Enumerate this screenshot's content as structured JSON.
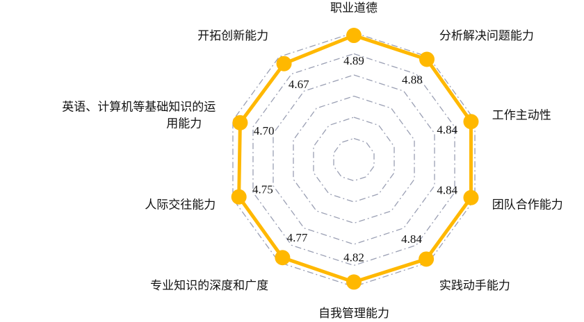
{
  "chart_data": {
    "type": "radar",
    "categories": [
      "职业道德",
      "分析解决问题能力",
      "工作主动性",
      "团队合作能力",
      "实践动手能力",
      "自我管理能力",
      "专业知识的深度和广度",
      "人际交往能力",
      "英语、计算机等基础知识的运用能力",
      "开拓创新能力"
    ],
    "category_lines": [
      [
        "职业道德"
      ],
      [
        "分析解决问题能力"
      ],
      [
        "工作主动性"
      ],
      [
        "团队合作能力"
      ],
      [
        "实践动手能力"
      ],
      [
        "自我管理能力"
      ],
      [
        "专业知识的深度和广度"
      ],
      [
        "人际交往能力"
      ],
      [
        "英语、计算机等基础知识的运",
        "用能力"
      ],
      [
        "开拓创新能力"
      ]
    ],
    "series": [
      {
        "values": [
          4.89,
          4.88,
          4.84,
          4.84,
          4.84,
          4.82,
          4.77,
          4.75,
          4.7,
          4.67
        ],
        "labels": [
          "4.89",
          "4.88",
          "4.84",
          "4.84",
          "4.84",
          "4.82",
          "4.77",
          "4.75",
          "4.70",
          "4.67"
        ],
        "color": "#FFB800"
      }
    ],
    "rlim": [
      0,
      5
    ],
    "grid_rings": 6,
    "grid": true
  }
}
